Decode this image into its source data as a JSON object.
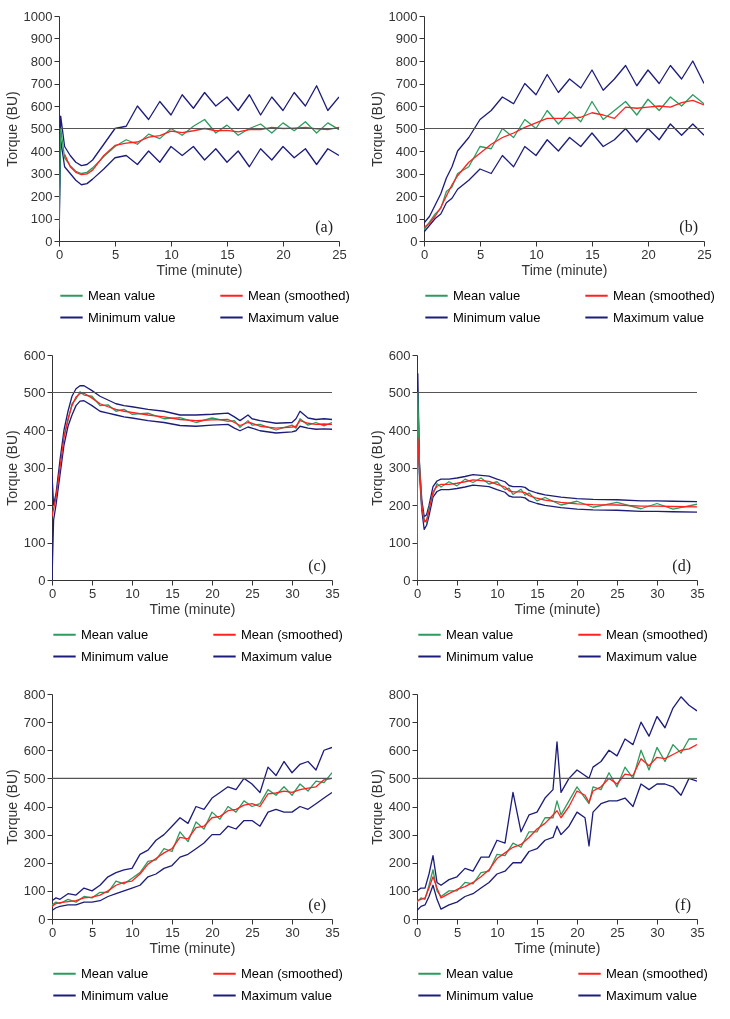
{
  "chart_data": [
    {
      "type": "line",
      "xlabel": "Time (minute)",
      "ylabel": "Torque (BU)",
      "xlim": [
        0,
        25
      ],
      "xticks": [
        0,
        5,
        10,
        15,
        20,
        25
      ],
      "ylim": [
        0,
        1000
      ],
      "yticks": [
        0,
        100,
        200,
        300,
        400,
        500,
        600,
        700,
        800,
        900,
        1000
      ],
      "legend": "bottom",
      "annotations": [
        "(a)"
      ],
      "ref_lines": [
        {
          "axis": "y",
          "value": 500,
          "color": "#555555"
        }
      ],
      "x": [
        0,
        0.15,
        0.5,
        1,
        1.5,
        2,
        2.5,
        3,
        4,
        5,
        6,
        7,
        8,
        9,
        10,
        11,
        12,
        13,
        14,
        15,
        16,
        17,
        18,
        19,
        20,
        21,
        22,
        23,
        24,
        25
      ],
      "series": [
        {
          "name": "Mean value",
          "color": "#2e9b5e",
          "values": [
            50,
            500,
            370,
            335,
            310,
            300,
            305,
            325,
            375,
            420,
            450,
            430,
            475,
            455,
            500,
            470,
            510,
            540,
            480,
            515,
            470,
            500,
            520,
            480,
            525,
            490,
            530,
            480,
            525,
            495
          ]
        },
        {
          "name": "Mean (smoothed)",
          "color": "#ff2020",
          "values": [
            null,
            null,
            385,
            330,
            305,
            295,
            298,
            315,
            380,
            425,
            435,
            440,
            462,
            468,
            488,
            482,
            490,
            500,
            490,
            492,
            485,
            495,
            495,
            505,
            500,
            502,
            505,
            498,
            495,
            505
          ]
        },
        {
          "name": "Minimum value",
          "color": "#1c1c7a",
          "values": [
            0,
            450,
            330,
            300,
            270,
            250,
            255,
            275,
            320,
            370,
            380,
            340,
            400,
            350,
            420,
            380,
            420,
            360,
            410,
            350,
            400,
            330,
            410,
            360,
            420,
            370,
            410,
            340,
            410,
            380
          ]
        },
        {
          "name": "Maximum value",
          "color": "#1c1c7a",
          "values": [
            100,
            555,
            420,
            380,
            350,
            335,
            340,
            360,
            430,
            500,
            510,
            600,
            540,
            620,
            560,
            650,
            590,
            660,
            600,
            640,
            580,
            650,
            560,
            640,
            580,
            660,
            600,
            690,
            580,
            640
          ]
        }
      ]
    },
    {
      "type": "line",
      "xlabel": "Time (minute)",
      "ylabel": "Torque (BU)",
      "xlim": [
        0,
        25
      ],
      "xticks": [
        0,
        5,
        10,
        15,
        20,
        25
      ],
      "ylim": [
        0,
        1000
      ],
      "yticks": [
        0,
        100,
        200,
        300,
        400,
        500,
        600,
        700,
        800,
        900,
        1000
      ],
      "legend": "bottom",
      "annotations": [
        "(b)"
      ],
      "ref_lines": [
        {
          "axis": "y",
          "value": 500,
          "color": "#555555"
        }
      ],
      "x": [
        0,
        0.5,
        1,
        1.5,
        2,
        2.5,
        3,
        4,
        5,
        6,
        7,
        8,
        9,
        10,
        11,
        12,
        13,
        14,
        15,
        16,
        17,
        18,
        19,
        20,
        21,
        22,
        23,
        24,
        25
      ],
      "series": [
        {
          "name": "Mean value",
          "color": "#2e9b5e",
          "values": [
            50,
            85,
            120,
            145,
            220,
            240,
            300,
            330,
            420,
            410,
            500,
            460,
            540,
            500,
            580,
            520,
            575,
            530,
            620,
            540,
            580,
            620,
            560,
            630,
            580,
            640,
            600,
            650,
            610
          ]
        },
        {
          "name": "Mean (smoothed)",
          "color": "#ff2020",
          "values": [
            60,
            80,
            110,
            150,
            200,
            250,
            290,
            350,
            390,
            430,
            460,
            480,
            505,
            525,
            545,
            545,
            545,
            550,
            570,
            560,
            545,
            595,
            590,
            595,
            600,
            595,
            615,
            625,
            605
          ]
        },
        {
          "name": "Minimum value",
          "color": "#1c1c7a",
          "values": [
            40,
            70,
            100,
            120,
            170,
            190,
            230,
            270,
            320,
            300,
            380,
            330,
            420,
            380,
            450,
            400,
            460,
            420,
            480,
            420,
            450,
            500,
            440,
            500,
            450,
            520,
            470,
            520,
            470
          ]
        },
        {
          "name": "Maximum value",
          "color": "#1c1c7a",
          "values": [
            80,
            110,
            160,
            210,
            280,
            330,
            400,
            460,
            540,
            580,
            640,
            610,
            700,
            650,
            740,
            660,
            720,
            680,
            760,
            670,
            720,
            780,
            690,
            760,
            700,
            780,
            720,
            800,
            700
          ]
        }
      ]
    },
    {
      "type": "line",
      "xlabel": "Time (minute)",
      "ylabel": "Torque (BU)",
      "xlim": [
        0,
        35
      ],
      "xticks": [
        0,
        5,
        10,
        15,
        20,
        25,
        30,
        35
      ],
      "ylim": [
        0,
        600
      ],
      "yticks": [
        0,
        100,
        200,
        300,
        400,
        500,
        600
      ],
      "legend": "bottom",
      "annotations": [
        "(c)"
      ],
      "ref_lines": [
        {
          "axis": "y",
          "value": 500,
          "color": "#555555"
        }
      ],
      "x": [
        0,
        0.2,
        0.5,
        1,
        1.5,
        2,
        2.5,
        3,
        3.5,
        4,
        5,
        6,
        7,
        8,
        9,
        10,
        12,
        14,
        16,
        18,
        20,
        22,
        22.8,
        23.5,
        24.5,
        25,
        26,
        28,
        30,
        30.5,
        31,
        32,
        33,
        34,
        35
      ],
      "series": [
        {
          "name": "Mean value",
          "color": "#2e9b5e",
          "values": [
            null,
            null,
            null,
            null,
            385,
            425,
            470,
            483,
            502,
            493,
            490,
            465,
            467,
            450,
            455,
            442,
            445,
            430,
            433,
            420,
            432,
            423,
            425,
            407,
            425,
            413,
            415,
            400,
            413,
            405,
            430,
            413,
            420,
            411,
            420
          ]
        },
        {
          "name": "Mean (smoothed)",
          "color": "#ff2020",
          "values": [
            170,
            190,
            220,
            300,
            380,
            430,
            465,
            488,
            497,
            498,
            485,
            470,
            462,
            455,
            450,
            447,
            440,
            435,
            428,
            425,
            427,
            428,
            420,
            412,
            420,
            418,
            410,
            405,
            408,
            410,
            425,
            418,
            415,
            416,
            415
          ]
        },
        {
          "name": "Minimum value",
          "color": "#1c1c7a",
          "values": [
            0,
            160,
            200,
            280,
            360,
            410,
            440,
            465,
            477,
            478,
            465,
            450,
            445,
            440,
            435,
            432,
            425,
            420,
            412,
            410,
            413,
            415,
            405,
            398,
            408,
            405,
            398,
            392,
            395,
            398,
            410,
            405,
            402,
            403,
            402
          ]
        },
        {
          "name": "Maximum value",
          "color": "#1c1c7a",
          "values": [
            280,
            200,
            230,
            320,
            400,
            450,
            490,
            510,
            518,
            518,
            505,
            490,
            480,
            470,
            465,
            462,
            455,
            450,
            440,
            440,
            442,
            445,
            435,
            425,
            440,
            430,
            425,
            418,
            420,
            430,
            450,
            432,
            428,
            430,
            428
          ]
        }
      ]
    },
    {
      "type": "line",
      "xlabel": "Time (minute)",
      "ylabel": "Torque (BU)",
      "xlim": [
        0,
        35
      ],
      "xticks": [
        0,
        5,
        10,
        15,
        20,
        25,
        30,
        35
      ],
      "ylim": [
        0,
        600
      ],
      "yticks": [
        0,
        100,
        200,
        300,
        400,
        500,
        600
      ],
      "legend": "bottom",
      "annotations": [
        "(d)"
      ],
      "ref_lines": [
        {
          "axis": "y",
          "value": 500,
          "color": "#555555"
        }
      ],
      "x": [
        0,
        0.1,
        0.3,
        0.6,
        0.9,
        1.2,
        1.5,
        2,
        2.5,
        3,
        4,
        5,
        6,
        7,
        8,
        9,
        10,
        11,
        11.5,
        12,
        13,
        13.5,
        14,
        15,
        16,
        18,
        20,
        22,
        25,
        28,
        30,
        32,
        35
      ],
      "series": [
        {
          "name": "Mean value",
          "color": "#2e9b5e",
          "values": [
            0,
            500,
            315,
            193,
            162,
            153,
            192,
            228,
            257,
            248,
            262,
            251,
            269,
            260,
            272,
            256,
            262,
            241,
            245,
            228,
            242,
            226,
            232,
            211,
            220,
            200,
            210,
            194,
            207,
            190,
            204,
            189,
            202
          ]
        },
        {
          "name": "Mean (smoothed)",
          "color": "#ff2020",
          "values": [
            null,
            380,
            300,
            200,
            155,
            160,
            185,
            235,
            250,
            255,
            255,
            258,
            262,
            267,
            265,
            263,
            255,
            248,
            238,
            235,
            235,
            233,
            225,
            218,
            213,
            207,
            203,
            201,
            200,
            197,
            197,
            196,
            195
          ]
        },
        {
          "name": "Minimum value",
          "color": "#1c1c7a",
          "values": [
            0,
            500,
            286,
            186,
            135,
            146,
            171,
            221,
            236,
            241,
            241,
            244,
            248,
            253,
            251,
            249,
            241,
            234,
            224,
            221,
            221,
            219,
            211,
            204,
            199,
            193,
            189,
            187,
            186,
            183,
            183,
            182,
            181
          ]
        },
        {
          "name": "Maximum value",
          "color": "#1c1c7a",
          "values": [
            0,
            550,
            314,
            214,
            169,
            174,
            199,
            249,
            264,
            269,
            269,
            272,
            276,
            281,
            279,
            277,
            269,
            262,
            252,
            249,
            249,
            247,
            239,
            232,
            227,
            221,
            217,
            215,
            214,
            211,
            211,
            210,
            209
          ]
        }
      ]
    },
    {
      "type": "line",
      "xlabel": "Time (minute)",
      "ylabel": "Torque (BU)",
      "xlim": [
        0,
        35
      ],
      "xticks": [
        0,
        5,
        10,
        15,
        20,
        25,
        30,
        35
      ],
      "ylim": [
        0,
        800
      ],
      "yticks": [
        0,
        100,
        200,
        300,
        400,
        500,
        600,
        700,
        800
      ],
      "legend": "bottom",
      "annotations": [
        "(e)"
      ],
      "ref_lines": [
        {
          "axis": "y",
          "value": 500,
          "color": "#555555"
        }
      ],
      "x": [
        0,
        0.5,
        1,
        2,
        3,
        4,
        5,
        6,
        7,
        8,
        9,
        10,
        11,
        12,
        13,
        14,
        15,
        16,
        17,
        18,
        19,
        20,
        21,
        22,
        23,
        24,
        25,
        26,
        27,
        28,
        29,
        30,
        31,
        32,
        33,
        34,
        35
      ],
      "series": [
        {
          "name": "Mean value",
          "color": "#2e9b5e",
          "values": [
            50,
            60,
            55,
            70,
            60,
            80,
            75,
            95,
            95,
            135,
            125,
            145,
            165,
            205,
            210,
            250,
            240,
            310,
            275,
            345,
            320,
            380,
            355,
            400,
            380,
            420,
            400,
            410,
            460,
            440,
            470,
            440,
            480,
            455,
            490,
            485,
            520
          ]
        },
        {
          "name": "Mean (smoothed)",
          "color": "#ff2020",
          "values": [
            45,
            55,
            58,
            62,
            65,
            75,
            78,
            85,
            100,
            120,
            130,
            135,
            160,
            195,
            215,
            235,
            250,
            290,
            285,
            325,
            330,
            360,
            365,
            385,
            390,
            405,
            410,
            400,
            445,
            448,
            455,
            450,
            460,
            465,
            470,
            495,
            500
          ]
        },
        {
          "name": "Minimum value",
          "color": "#1c1c7a",
          "values": [
            30,
            40,
            45,
            50,
            50,
            60,
            60,
            65,
            80,
            90,
            100,
            110,
            120,
            150,
            160,
            180,
            190,
            220,
            230,
            250,
            270,
            300,
            300,
            330,
            320,
            350,
            350,
            330,
            380,
            390,
            380,
            380,
            400,
            390,
            410,
            430,
            450
          ]
        },
        {
          "name": "Maximum value",
          "color": "#1c1c7a",
          "values": [
            65,
            75,
            70,
            90,
            85,
            110,
            100,
            120,
            150,
            165,
            175,
            180,
            230,
            245,
            280,
            300,
            330,
            360,
            340,
            400,
            390,
            430,
            450,
            470,
            460,
            500,
            480,
            450,
            540,
            510,
            560,
            520,
            550,
            560,
            530,
            600,
            610
          ]
        }
      ]
    },
    {
      "type": "line",
      "xlabel": "Time (minute)",
      "ylabel": "Torque (BU)",
      "xlim": [
        0,
        35
      ],
      "xticks": [
        0,
        5,
        10,
        15,
        20,
        25,
        30,
        35
      ],
      "ylim": [
        0,
        800
      ],
      "yticks": [
        0,
        100,
        200,
        300,
        400,
        500,
        600,
        700,
        800
      ],
      "legend": "bottom",
      "annotations": [
        "(f)"
      ],
      "ref_lines": [
        {
          "axis": "y",
          "value": 500,
          "color": "#555555"
        }
      ],
      "x": [
        0,
        0.5,
        1,
        1.5,
        2,
        2.5,
        3,
        4,
        5,
        6,
        7,
        8,
        9,
        10,
        11,
        12,
        13,
        14,
        15,
        16,
        17,
        17.5,
        18,
        19,
        20,
        21,
        21.5,
        22,
        23,
        24,
        25,
        26,
        27,
        28,
        29,
        30,
        31,
        32,
        33,
        34,
        35
      ],
      "series": [
        {
          "name": "Mean value",
          "color": "#2e9b5e",
          "values": [
            60,
            75,
            70,
            120,
            175,
            100,
            80,
            100,
            100,
            130,
            125,
            165,
            170,
            230,
            225,
            270,
            255,
            310,
            310,
            360,
            360,
            420,
            370,
            420,
            470,
            430,
            410,
            470,
            460,
            520,
            470,
            540,
            500,
            600,
            530,
            610,
            560,
            620,
            590,
            640,
            640
          ]
        },
        {
          "name": "Mean (smoothed)",
          "color": "#ff2020",
          "values": [
            65,
            70,
            75,
            110,
            150,
            110,
            75,
            90,
            105,
            115,
            130,
            150,
            175,
            215,
            235,
            255,
            265,
            290,
            320,
            340,
            370,
            385,
            360,
            400,
            455,
            440,
            415,
            455,
            470,
            500,
            480,
            515,
            510,
            570,
            545,
            575,
            570,
            585,
            600,
            605,
            620
          ]
        },
        {
          "name": "Minimum value",
          "color": "#1c1c7a",
          "values": [
            30,
            45,
            50,
            80,
            120,
            70,
            35,
            50,
            60,
            80,
            90,
            110,
            130,
            160,
            170,
            200,
            200,
            240,
            250,
            280,
            290,
            330,
            300,
            330,
            380,
            360,
            260,
            380,
            410,
            420,
            420,
            430,
            400,
            480,
            460,
            480,
            480,
            470,
            440,
            500,
            490
          ]
        },
        {
          "name": "Maximum value",
          "color": "#1c1c7a",
          "values": [
            100,
            110,
            110,
            160,
            225,
            130,
            120,
            140,
            150,
            180,
            170,
            220,
            220,
            280,
            270,
            450,
            310,
            370,
            380,
            430,
            460,
            630,
            450,
            500,
            530,
            510,
            500,
            540,
            560,
            600,
            580,
            640,
            620,
            700,
            650,
            720,
            680,
            750,
            790,
            760,
            740
          ]
        }
      ]
    }
  ]
}
